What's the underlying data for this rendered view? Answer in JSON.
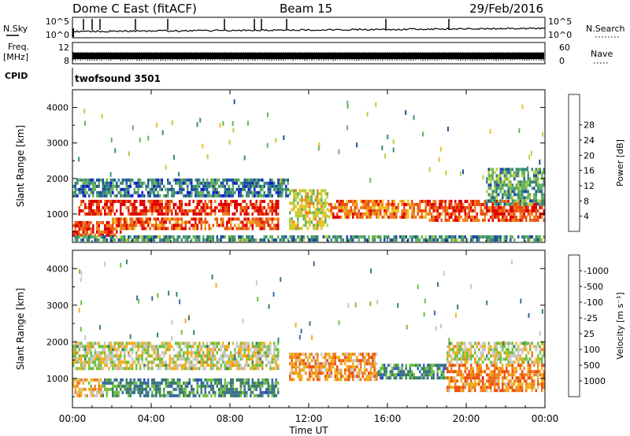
{
  "header": {
    "station": "Dome C East (fitACF)",
    "beam": "Beam 15",
    "date": "29/Feb/2016"
  },
  "meta_panel": {
    "nsky_label": "N.Sky",
    "nsky_ticks": [
      "10^5",
      "10^0"
    ],
    "nsearch_label": "N.Search",
    "freq_label": "Freq.",
    "freq_unit": "[MHz]",
    "freq_ticks": [
      "12",
      "8"
    ],
    "nave_ticks": [
      "60",
      "0"
    ],
    "nave_label": "Nave",
    "cpid_label": "CPID",
    "cpid_value": "twofsound 3501"
  },
  "chart_data": [
    {
      "type": "heatmap",
      "name": "power",
      "ylabel": "Slant Range [km]",
      "yticks": [
        1000,
        2000,
        3000,
        4000
      ],
      "ylim": [
        200,
        4500
      ],
      "xlim": [
        0,
        24
      ],
      "colorbar": {
        "label": "Power [dB]",
        "ticks": [
          "4",
          "8",
          "12",
          "16",
          "20",
          "24",
          "28"
        ],
        "colors": [
          "#1010e0",
          "#2050a0",
          "#3a8a7a",
          "#66b060",
          "#b8d040",
          "#f0c020",
          "#f08020",
          "#e85010",
          "#e00000"
        ]
      },
      "bands": [
        {
          "t0": 0.0,
          "t1": 2.5,
          "r0": 400,
          "r1": 800,
          "level": 0.85
        },
        {
          "t0": 0.3,
          "t1": 10.5,
          "r0": 1000,
          "r1": 1400,
          "level": 0.9
        },
        {
          "t0": 2.0,
          "t1": 10.5,
          "r0": 550,
          "r1": 900,
          "level": 0.8
        },
        {
          "t0": 0.0,
          "t1": 11.0,
          "r0": 1500,
          "r1": 2000,
          "level": 0.25
        },
        {
          "t0": 11.0,
          "t1": 13.0,
          "r0": 600,
          "r1": 1700,
          "level": 0.55
        },
        {
          "t0": 13.0,
          "t1": 18.0,
          "r0": 900,
          "r1": 1400,
          "level": 0.75
        },
        {
          "t0": 18.0,
          "t1": 24.0,
          "r0": 800,
          "r1": 1400,
          "level": 0.85
        },
        {
          "t0": 21.0,
          "t1": 24.0,
          "r0": 1300,
          "r1": 2300,
          "level": 0.35
        },
        {
          "t0": 0.0,
          "t1": 24.0,
          "r0": 250,
          "r1": 400,
          "level": 0.3
        }
      ]
    },
    {
      "type": "heatmap",
      "name": "velocity",
      "ylabel": "Slant Range [km]",
      "xlabel": "Time UT",
      "xticks": [
        "00:00",
        "04:00",
        "08:00",
        "12:00",
        "16:00",
        "20:00",
        "00:00"
      ],
      "xtick_values": [
        0,
        4,
        8,
        12,
        16,
        20,
        24
      ],
      "yticks": [
        1000,
        2000,
        3000,
        4000
      ],
      "ylim": [
        200,
        4500
      ],
      "xlim": [
        0,
        24
      ],
      "colorbar": {
        "label": "Velocity [m s⁻¹]",
        "ticks": [
          "1000",
          "500",
          "100",
          "25",
          "-25",
          "-100",
          "-500",
          "-1000"
        ],
        "colors": [
          "#2040c0",
          "#3a6aa0",
          "#3a8060",
          "#70c040",
          "#c8c8c8",
          "#f0b020",
          "#f08020",
          "#f05010",
          "#e00000"
        ]
      },
      "bands": [
        {
          "t0": 0.0,
          "t1": 10.5,
          "r0": 1300,
          "r1": 2000,
          "level": 0.5
        },
        {
          "t0": 1.5,
          "t1": 10.5,
          "r0": 500,
          "r1": 1000,
          "level": 0.28
        },
        {
          "t0": 0.0,
          "t1": 1.5,
          "r0": 500,
          "r1": 1000,
          "level": 0.6
        },
        {
          "t0": 11.0,
          "t1": 15.5,
          "r0": 1000,
          "r1": 1700,
          "level": 0.68
        },
        {
          "t0": 15.5,
          "t1": 19.0,
          "r0": 1000,
          "r1": 1400,
          "level": 0.28
        },
        {
          "t0": 19.0,
          "t1": 24.0,
          "r0": 700,
          "r1": 1400,
          "level": 0.72
        },
        {
          "t0": 19.0,
          "t1": 24.0,
          "r0": 1400,
          "r1": 2000,
          "level": 0.5
        }
      ]
    }
  ]
}
